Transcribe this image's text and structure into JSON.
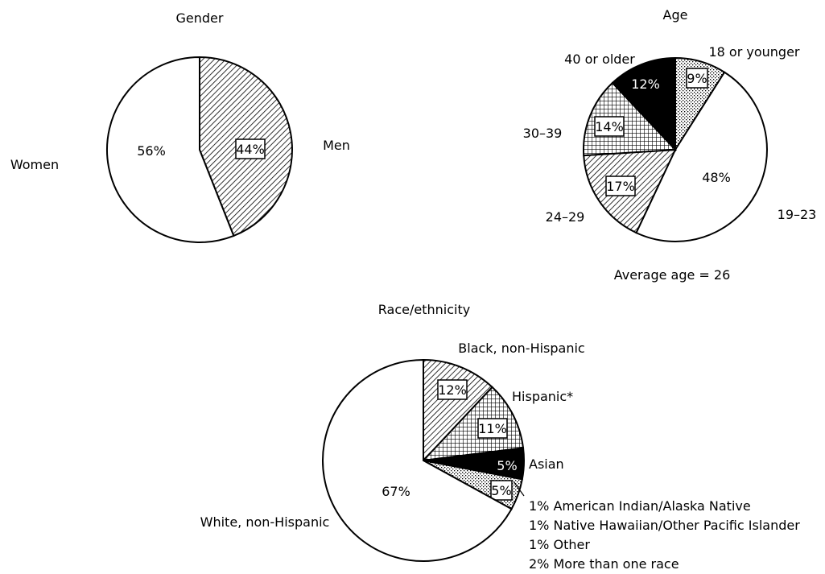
{
  "chart_data": [
    {
      "type": "pie",
      "title": "Gender",
      "slices": [
        {
          "label": "Men",
          "value": 44,
          "value_label": "44%",
          "pattern": "hatch"
        },
        {
          "label": "Women",
          "value": 56,
          "value_label": "56%",
          "pattern": "white"
        }
      ]
    },
    {
      "type": "pie",
      "title": "Age",
      "footnote": "Average age = 26",
      "slices": [
        {
          "label": "18 or younger",
          "value": 9,
          "value_label": "9%",
          "pattern": "dots"
        },
        {
          "label": "19–23",
          "value": 48,
          "value_label": "48%",
          "pattern": "white"
        },
        {
          "label": "24–29",
          "value": 17,
          "value_label": "17%",
          "pattern": "hatch"
        },
        {
          "label": "30–39",
          "value": 14,
          "value_label": "14%",
          "pattern": "grid"
        },
        {
          "label": "40 or older",
          "value": 12,
          "value_label": "12%",
          "pattern": "black"
        }
      ]
    },
    {
      "type": "pie",
      "title": "Race/ethnicity",
      "slices": [
        {
          "label": "Black, non-Hispanic",
          "value": 12,
          "value_label": "12%",
          "pattern": "hatch"
        },
        {
          "label": "Hispanic*",
          "value": 11,
          "value_label": "11%",
          "pattern": "grid"
        },
        {
          "label": "Asian",
          "value": 5,
          "value_label": "5%",
          "pattern": "black"
        },
        {
          "label": "",
          "value": 5,
          "value_label": "5%",
          "pattern": "dots"
        },
        {
          "label": "White, non-Hispanic",
          "value": 67,
          "value_label": "67%",
          "pattern": "white"
        }
      ],
      "other_breakdown": [
        "1% American Indian/Alaska Native",
        "1% Native Hawaiian/Other Pacific Islander",
        "1% Other",
        "2% More than one race"
      ]
    }
  ]
}
